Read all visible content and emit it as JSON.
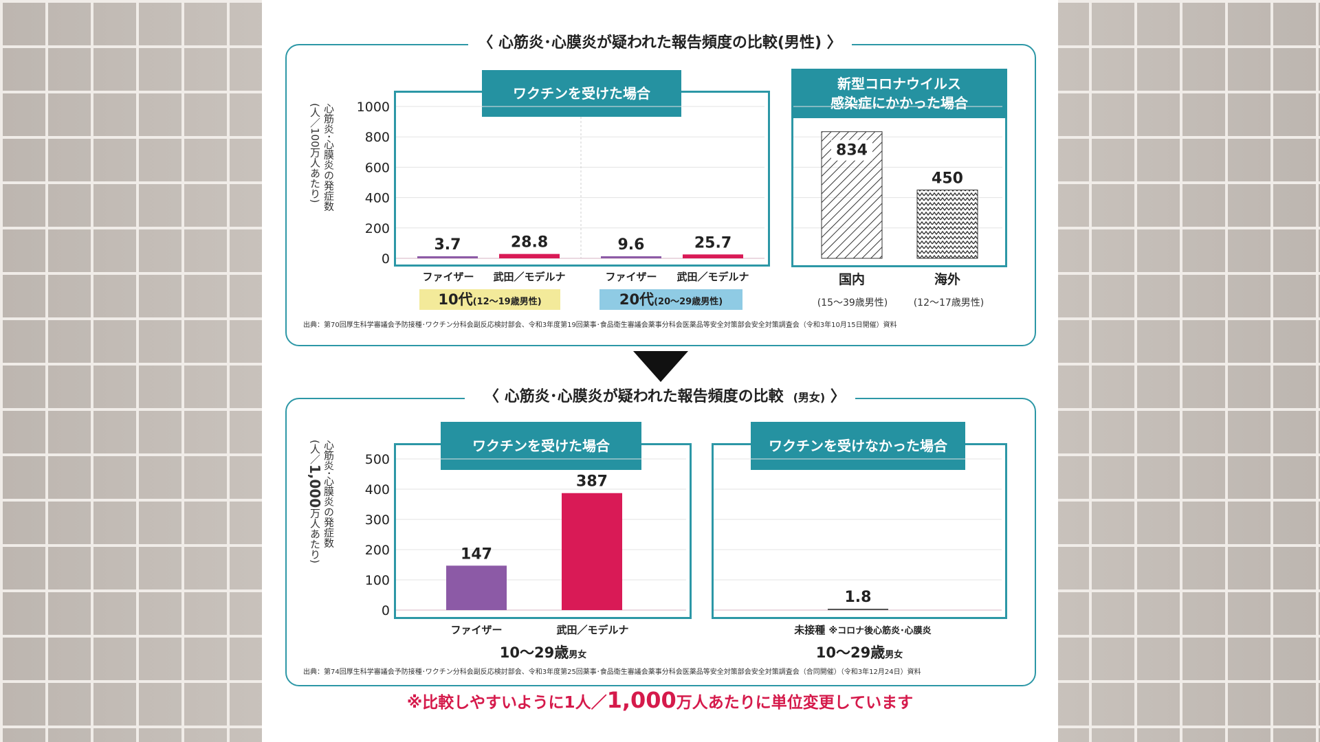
{
  "colors": {
    "teal": "#2592a1",
    "pfizer": "#8c5aa6",
    "takeda": "#d91a56",
    "badge_teen": "#f3ea9a",
    "badge_twenties": "#8fcbe4"
  },
  "top": {
    "title": "〈 心筋炎･心膜炎が疑われた報告頻度の比較(男性) 〉",
    "ylabel_line1": "心筋炎･心膜炎の発症数",
    "ylabel_line2": "(人／100万人あたり)",
    "vaccine_header": "ワクチンを受けた場合",
    "covid_header_line1": "新型コロナウイルス",
    "covid_header_line2": "感染症にかかった場合",
    "categories": [
      "ファイザー",
      "武田／モデルナ",
      "ファイザー",
      "武田／モデルナ"
    ],
    "age_teen": "10代",
    "age_teen_range": "(12～19歳男性)",
    "age_twenties": "20代",
    "age_twenties_range": "(20～29歳男性)",
    "covid_categories": [
      "国内",
      "海外"
    ],
    "covid_sub": [
      "(15～39歳男性)",
      "(12～17歳男性)"
    ],
    "source": "出典：第70回厚生科学審議会予防接種･ワクチン分科会副反応検討部会、令和3年度第19回薬事･食品衛生審議会薬事分科会医薬品等安全対策部会安全対策調査会（令和3年10月15日開催）資料"
  },
  "bottom": {
    "title": "〈 心筋炎･心膜炎が疑われた報告頻度の比較",
    "title_small": "(男女)",
    "title_end": "〉",
    "ylabel_line1": "心筋炎･心膜炎の発症数",
    "ylabel_line2a": "(人／",
    "ylabel_line2b": "1,000",
    "ylabel_line2c": "万人あたり)",
    "vaccine_header": "ワクチンを受けた場合",
    "novaccine_header": "ワクチンを受けなかった場合",
    "categories": [
      "ファイザー",
      "武田／モデルナ"
    ],
    "unvax_category": "未接種",
    "unvax_note": "※コロナ後心筋炎･心膜炎",
    "age_left": "10～29歳",
    "age_left_small": "男女",
    "age_right": "10～29歳",
    "age_right_small": "男女",
    "source": "出典：第74回厚生科学審議会予防接種･ワクチン分科会副反応検討部会、令和3年度第25回薬事･食品衛生審議会薬事分科会医薬品等安全対策部会安全対策調査会（合同開催）（令和3年12月24日）資料"
  },
  "footnote": {
    "prefix": "※比較しやすいように1人／",
    "big": "1,000",
    "suffix": "万人あたりに単位変更しています"
  },
  "chart_data": [
    {
      "type": "bar",
      "title": "ワクチンを受けた場合",
      "ylabel": "心筋炎･心膜炎の発症数(人／100万人あたり)",
      "ylim": [
        0,
        1000
      ],
      "yticks": [
        0,
        200,
        400,
        600,
        800,
        1000
      ],
      "categories": [
        "ファイザー",
        "武田／モデルナ",
        "ファイザー",
        "武田／モデルナ"
      ],
      "groups": [
        "10代",
        "10代",
        "20代",
        "20代"
      ],
      "values": [
        3.7,
        28.8,
        9.6,
        25.7
      ],
      "labels": [
        "3.7",
        "28.8",
        "9.6",
        "25.7"
      ]
    },
    {
      "type": "bar",
      "title": "新型コロナウイルス感染症にかかった場合",
      "ylim": [
        0,
        1000
      ],
      "categories": [
        "国内",
        "海外"
      ],
      "values": [
        834,
        450
      ],
      "labels": [
        "834",
        "450"
      ]
    },
    {
      "type": "bar",
      "title": "ワクチンを受けた場合",
      "ylabel": "心筋炎･心膜炎の発症数(人／1,000万人あたり)",
      "ylim": [
        0,
        500
      ],
      "yticks": [
        0,
        100,
        200,
        300,
        400,
        500
      ],
      "categories": [
        "ファイザー",
        "武田／モデルナ"
      ],
      "values": [
        147,
        387
      ],
      "labels": [
        "147",
        "387"
      ]
    },
    {
      "type": "bar",
      "title": "ワクチンを受けなかった場合",
      "ylim": [
        0,
        500
      ],
      "categories": [
        "未接種"
      ],
      "values": [
        1.8
      ],
      "labels": [
        "1.8"
      ]
    }
  ]
}
